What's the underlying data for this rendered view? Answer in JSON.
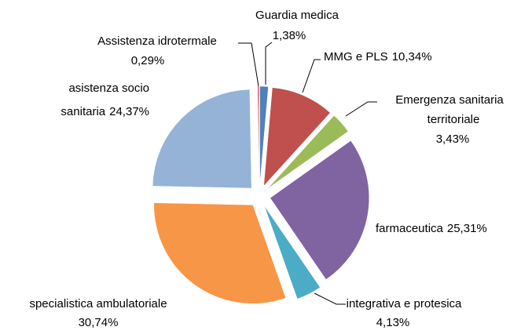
{
  "chart_data": {
    "type": "pie",
    "categories": [
      "Guardia medica",
      "MMG e PLS",
      "Emergenza sanitaria territoriale",
      "farmaceutica",
      "integrativa e protesica",
      "specialistica ambulatoriale",
      "asistenza socio sanitaria",
      "Assistenza idrotermale"
    ],
    "values": [
      1.38,
      10.34,
      3.43,
      25.31,
      4.13,
      30.74,
      24.37,
      0.29
    ],
    "value_labels": [
      "1,38%",
      "10,34%",
      "3,43%",
      "25,31%",
      "4,13%",
      "30,74%",
      "24,37%",
      "0,29%"
    ],
    "colors": [
      "#4f81bd",
      "#c0504d",
      "#9bbb59",
      "#8064a2",
      "#4bacc6",
      "#f79646",
      "#95b3d7",
      "#e06666"
    ]
  }
}
